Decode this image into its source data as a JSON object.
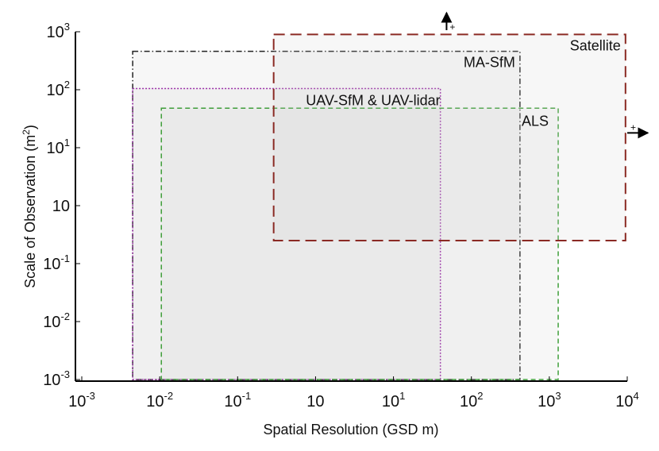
{
  "chart_data": {
    "type": "area",
    "title": "",
    "xlabel": "Spatial Resolution (GSD m)",
    "ylabel_text": "Scale of Observation (m",
    "ylabel_sup": "2",
    "ylabel_close": ")",
    "log_scale": true,
    "grid": false,
    "xlim": [
      0.001,
      10000
    ],
    "ylim": [
      0.001,
      1000
    ],
    "x_ticks": [
      {
        "value": 0.001,
        "base": "10",
        "exp": "-3"
      },
      {
        "value": 0.01,
        "base": "10",
        "exp": "-2"
      },
      {
        "value": 0.1,
        "base": "10",
        "exp": "-1"
      },
      {
        "value": 1,
        "base": "10",
        "exp": ""
      },
      {
        "value": 10,
        "base": "10",
        "exp": "1"
      },
      {
        "value": 100,
        "base": "10",
        "exp": "2"
      },
      {
        "value": 1000,
        "base": "10",
        "exp": "3"
      },
      {
        "value": 10000,
        "base": "10",
        "exp": "4"
      }
    ],
    "y_ticks": [
      {
        "value": 0.001,
        "base": "10",
        "exp": "-3"
      },
      {
        "value": 0.01,
        "base": "10",
        "exp": "-2"
      },
      {
        "value": 0.1,
        "base": "10",
        "exp": "-1"
      },
      {
        "value": 1,
        "base": "10",
        "exp": ""
      },
      {
        "value": 10,
        "base": "10",
        "exp": "1"
      },
      {
        "value": 100,
        "base": "10",
        "exp": "2"
      },
      {
        "value": 1000,
        "base": "10",
        "exp": "3"
      }
    ],
    "series": [
      {
        "name": "MA-SfM",
        "x": [
          0.0045,
          420
        ],
        "y": [
          0.001,
          460
        ],
        "color": "#222222",
        "dash": "dashdot"
      },
      {
        "name": "UAV-SfM & UAV-lidar",
        "x": [
          0.0045,
          40
        ],
        "y": [
          0.001,
          105
        ],
        "color": "#9b30a8",
        "dash": "dotted"
      },
      {
        "name": "ALS",
        "x": [
          0.0105,
          1300
        ],
        "y": [
          0.001,
          48
        ],
        "color": "#3f9e3a",
        "dash": "dashed"
      },
      {
        "name": "Satellite",
        "x": [
          0.29,
          9500
        ],
        "y": [
          0.25,
          900
        ],
        "color": "#8b2a24",
        "dash": "longdash"
      }
    ],
    "arrows": [
      {
        "direction": "up",
        "label": "+",
        "x": 48
      },
      {
        "direction": "right",
        "label": "+",
        "y": 18
      }
    ]
  }
}
